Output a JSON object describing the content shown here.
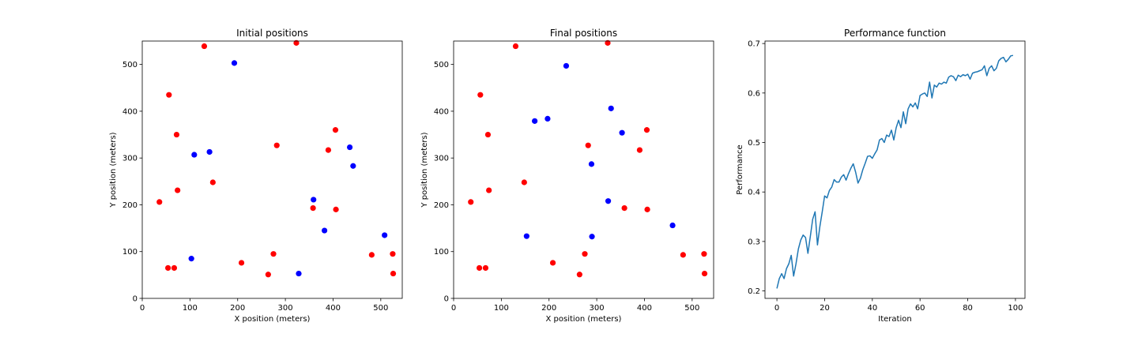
{
  "colors": {
    "red": "#ff0000",
    "blue": "#0000ff",
    "line": "#1f77b4",
    "axes": "#000000"
  },
  "chart_data": [
    {
      "type": "scatter",
      "title": "Initial positions",
      "xlabel": "X position (meters)",
      "ylabel": "Y position (meters)",
      "xlim": [
        0,
        545
      ],
      "ylim": [
        0,
        550
      ],
      "xticks": [
        0,
        100,
        200,
        300,
        400,
        500
      ],
      "yticks": [
        0,
        100,
        200,
        300,
        400,
        500
      ],
      "grid": false,
      "series": [
        {
          "color": "red",
          "points": [
            [
              36,
              206
            ],
            [
              54,
              65
            ],
            [
              56,
              435
            ],
            [
              67,
              65
            ],
            [
              72,
              350
            ],
            [
              74,
              231
            ],
            [
              130,
              539
            ],
            [
              148,
              248
            ],
            [
              208,
              76
            ],
            [
              264,
              51
            ],
            [
              275,
              95
            ],
            [
              282,
              327
            ],
            [
              323,
              546
            ],
            [
              358,
              193
            ],
            [
              390,
              317
            ],
            [
              405,
              360
            ],
            [
              406,
              190
            ],
            [
              481,
              93
            ],
            [
              525,
              95
            ],
            [
              526,
              53
            ]
          ]
        },
        {
          "color": "blue",
          "points": [
            [
              103,
              85
            ],
            [
              109,
              307
            ],
            [
              141,
              313
            ],
            [
              193,
              503
            ],
            [
              328,
              53
            ],
            [
              359,
              211
            ],
            [
              382,
              145
            ],
            [
              435,
              323
            ],
            [
              442,
              283
            ],
            [
              508,
              135
            ]
          ]
        }
      ]
    },
    {
      "type": "scatter",
      "title": "Final positions",
      "xlabel": "X position (meters)",
      "ylabel": "Y position (meters)",
      "xlim": [
        0,
        545
      ],
      "ylim": [
        0,
        550
      ],
      "xticks": [
        0,
        100,
        200,
        300,
        400,
        500
      ],
      "yticks": [
        0,
        100,
        200,
        300,
        400,
        500
      ],
      "grid": false,
      "series": [
        {
          "color": "red",
          "points": [
            [
              36,
              206
            ],
            [
              54,
              65
            ],
            [
              56,
              435
            ],
            [
              67,
              65
            ],
            [
              72,
              350
            ],
            [
              74,
              231
            ],
            [
              130,
              539
            ],
            [
              148,
              248
            ],
            [
              208,
              76
            ],
            [
              264,
              51
            ],
            [
              275,
              95
            ],
            [
              282,
              327
            ],
            [
              323,
              546
            ],
            [
              358,
              193
            ],
            [
              390,
              317
            ],
            [
              405,
              360
            ],
            [
              406,
              190
            ],
            [
              481,
              93
            ],
            [
              525,
              95
            ],
            [
              526,
              53
            ]
          ]
        },
        {
          "color": "blue",
          "points": [
            [
              153,
              133
            ],
            [
              170,
              379
            ],
            [
              197,
              384
            ],
            [
              236,
              497
            ],
            [
              289,
              287
            ],
            [
              290,
              132
            ],
            [
              324,
              208
            ],
            [
              330,
              406
            ],
            [
              353,
              354
            ],
            [
              459,
              156
            ]
          ]
        }
      ]
    },
    {
      "type": "line",
      "title": "Performance function",
      "xlabel": "Iteration",
      "ylabel": "Performance",
      "xlim": [
        -5,
        104
      ],
      "ylim": [
        0.185,
        0.705
      ],
      "xticks": [
        0,
        20,
        40,
        60,
        80,
        100
      ],
      "yticks": [
        0.2,
        0.3,
        0.4,
        0.5,
        0.6,
        0.7
      ],
      "ytick_labels": [
        "0.2",
        "0.3",
        "0.4",
        "0.5",
        "0.6",
        "0.7"
      ],
      "grid": false,
      "series": [
        {
          "color": "line",
          "x": [
            0,
            1,
            2,
            3,
            4,
            5,
            6,
            7,
            8,
            9,
            10,
            11,
            12,
            13,
            14,
            15,
            16,
            17,
            18,
            19,
            20,
            21,
            22,
            23,
            24,
            25,
            26,
            27,
            28,
            29,
            30,
            31,
            32,
            33,
            34,
            35,
            36,
            37,
            38,
            39,
            40,
            41,
            42,
            43,
            44,
            45,
            46,
            47,
            48,
            49,
            50,
            51,
            52,
            53,
            54,
            55,
            56,
            57,
            58,
            59,
            60,
            61,
            62,
            63,
            64,
            65,
            66,
            67,
            68,
            69,
            70,
            71,
            72,
            73,
            74,
            75,
            76,
            77,
            78,
            79,
            80,
            81,
            82,
            83,
            84,
            85,
            86,
            87,
            88,
            89,
            90,
            91,
            92,
            93,
            94,
            95,
            96,
            97,
            98,
            99
          ],
          "y": [
            0.205,
            0.225,
            0.235,
            0.225,
            0.245,
            0.255,
            0.272,
            0.23,
            0.255,
            0.285,
            0.303,
            0.313,
            0.308,
            0.276,
            0.31,
            0.345,
            0.36,
            0.293,
            0.33,
            0.36,
            0.392,
            0.388,
            0.403,
            0.41,
            0.425,
            0.42,
            0.42,
            0.43,
            0.435,
            0.424,
            0.437,
            0.448,
            0.457,
            0.44,
            0.418,
            0.428,
            0.445,
            0.458,
            0.472,
            0.473,
            0.468,
            0.477,
            0.485,
            0.505,
            0.508,
            0.5,
            0.515,
            0.512,
            0.525,
            0.505,
            0.53,
            0.545,
            0.53,
            0.562,
            0.538,
            0.568,
            0.578,
            0.572,
            0.58,
            0.568,
            0.595,
            0.598,
            0.6,
            0.593,
            0.622,
            0.59,
            0.616,
            0.612,
            0.62,
            0.618,
            0.622,
            0.62,
            0.632,
            0.635,
            0.633,
            0.625,
            0.636,
            0.633,
            0.637,
            0.635,
            0.638,
            0.628,
            0.64,
            0.642,
            0.643,
            0.645,
            0.647,
            0.655,
            0.635,
            0.65,
            0.655,
            0.645,
            0.65,
            0.665,
            0.67,
            0.672,
            0.663,
            0.668,
            0.675,
            0.676
          ]
        }
      ]
    }
  ]
}
